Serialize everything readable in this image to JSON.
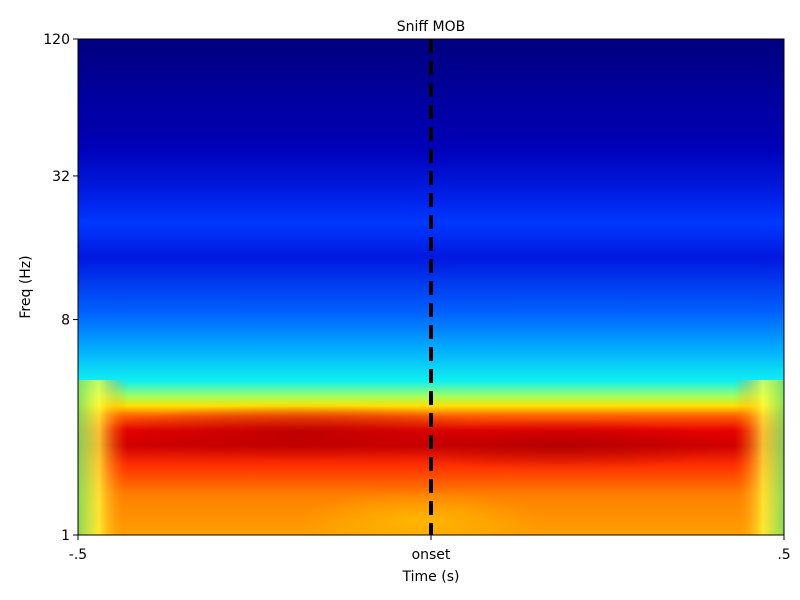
{
  "chart_data": {
    "type": "heatmap",
    "title": "Sniff MOB",
    "xlabel": "Time (s)",
    "ylabel": "Freq (Hz)",
    "xlim": [
      -0.5,
      0.5
    ],
    "ylim": [
      1,
      120
    ],
    "y_scale": "log",
    "x_ticks": [
      {
        "value": -0.5,
        "label": "-.5"
      },
      {
        "value": 0,
        "label": "onset"
      },
      {
        "value": 0.5,
        "label": ".5"
      }
    ],
    "y_ticks": [
      {
        "value": 1,
        "label": "1"
      },
      {
        "value": 8,
        "label": "8"
      },
      {
        "value": 32,
        "label": "32"
      },
      {
        "value": 120,
        "label": "120"
      }
    ],
    "colormap": "jet",
    "marker_line": {
      "x": 0,
      "style": "dashed",
      "color": "#000000"
    },
    "bands": [
      {
        "freq_range": [
          1,
          2
        ],
        "intensity": "high (orange/yellow)"
      },
      {
        "freq_range": [
          2,
          3.5
        ],
        "intensity": "peak (red)"
      },
      {
        "freq_range": [
          3.5,
          5
        ],
        "intensity": "medium (yellow-cyan)"
      },
      {
        "freq_range": [
          5,
          20
        ],
        "intensity": "low (blue)"
      },
      {
        "freq_range": [
          20,
          120
        ],
        "intensity": "minimal (dark blue)"
      }
    ]
  }
}
